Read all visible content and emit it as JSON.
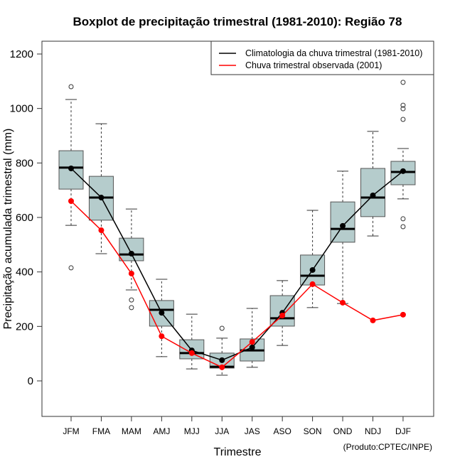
{
  "chart_data": {
    "type": "boxplot",
    "title": "Boxplot de precipitação trimestral (1981-2010): Região 78",
    "xlabel": "Trimestre",
    "ylabel": "Precipitação acumulada trimestral (mm)",
    "ylim": [
      -130,
      1240
    ],
    "yticks": [
      0,
      200,
      400,
      600,
      800,
      1000,
      1200
    ],
    "grid": false,
    "legend_position": "top-right",
    "credit": "(Produto:CPTEC/INPE)",
    "categories": [
      "JFM",
      "FMA",
      "MAM",
      "AMJ",
      "MJJ",
      "JJA",
      "JAS",
      "ASO",
      "SON",
      "OND",
      "NDJ",
      "DJF"
    ],
    "boxes": [
      {
        "whisker_low": 571,
        "q1": 704,
        "median": 783,
        "q3": 845,
        "whisker_high": 1033,
        "outliers": [
          1080,
          415
        ]
      },
      {
        "whisker_low": 467,
        "q1": 590,
        "median": 673,
        "q3": 751,
        "whisker_high": 944,
        "outliers": []
      },
      {
        "whisker_low": 334,
        "q1": 441,
        "median": 464,
        "q3": 524,
        "whisker_high": 631,
        "outliers": [
          297,
          269
        ]
      },
      {
        "whisker_low": 89,
        "q1": 201,
        "median": 261,
        "q3": 295,
        "whisker_high": 373,
        "outliers": []
      },
      {
        "whisker_low": 44,
        "q1": 81,
        "median": 102,
        "q3": 151,
        "whisker_high": 245,
        "outliers": []
      },
      {
        "whisker_low": 21,
        "q1": 47,
        "median": 52,
        "q3": 102,
        "whisker_high": 157,
        "outliers": [
          193
        ]
      },
      {
        "whisker_low": 50,
        "q1": 73,
        "median": 112,
        "q3": 154,
        "whisker_high": 266,
        "outliers": []
      },
      {
        "whisker_low": 130,
        "q1": 201,
        "median": 230,
        "q3": 313,
        "whisker_high": 368,
        "outliers": []
      },
      {
        "whisker_low": 269,
        "q1": 352,
        "median": 386,
        "q3": 462,
        "whisker_high": 626,
        "outliers": []
      },
      {
        "whisker_low": 284,
        "q1": 509,
        "median": 558,
        "q3": 657,
        "whisker_high": 770,
        "outliers": []
      },
      {
        "whisker_low": 532,
        "q1": 603,
        "median": 673,
        "q3": 780,
        "whisker_high": 916,
        "outliers": []
      },
      {
        "whisker_low": 668,
        "q1": 720,
        "median": 767,
        "q3": 806,
        "whisker_high": 853,
        "outliers": [
          1096,
          1012,
          999,
          960,
          595,
          566
        ]
      }
    ],
    "series": [
      {
        "name": "Climatologia da chuva trimestral (1981-2010)",
        "color": "#000000",
        "values": [
          780,
          673,
          467,
          250,
          112,
          76,
          123,
          250,
          407,
          569,
          681,
          770
        ]
      },
      {
        "name": "Chuva trimestral observada (2001)",
        "color": "#ff0000",
        "values": [
          660,
          553,
          394,
          164,
          102,
          50,
          143,
          240,
          355,
          287,
          222,
          243
        ]
      }
    ],
    "box_fill": "#b5cccc",
    "box_stroke": "#555555"
  }
}
